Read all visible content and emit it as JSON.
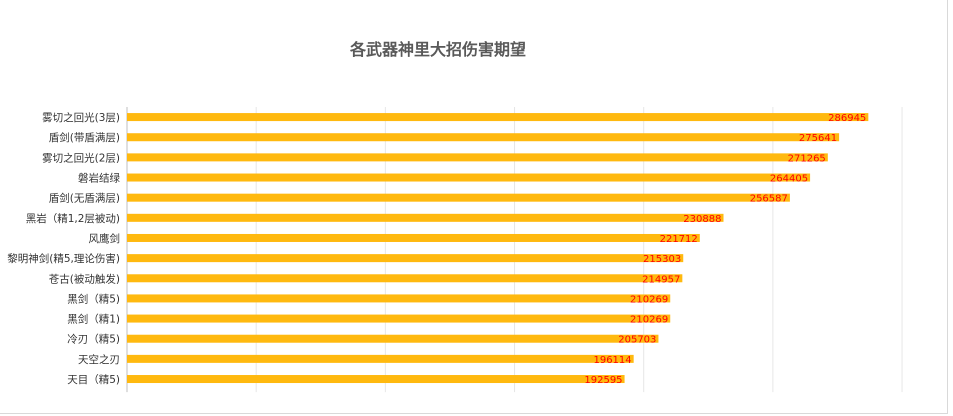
{
  "chart_data": {
    "type": "bar",
    "orientation": "horizontal",
    "title": "各武器神里大招伤害期望",
    "xlabel": "",
    "ylabel": "",
    "xlim": [
      0,
      300000
    ],
    "grid": true,
    "legend": "none",
    "colors": {
      "bar": "#FFB90F",
      "label": "#FF0000",
      "grid": "#E6E6E6"
    },
    "categories": [
      "雾切之回光(3层)",
      "盾剑(带盾满层)",
      "雾切之回光(2层)",
      "磐岩结绿",
      "盾剑(无盾满层)",
      "黑岩（精1,2层被动)",
      "风鹰剑",
      "黎明神剑(精5,理论伤害)",
      "苍古(被动触发)",
      "黑剑（精5)",
      "黑剑（精1)",
      "冷刃（精5)",
      "天空之刃",
      "天目（精5)"
    ],
    "values": [
      286945,
      275641,
      271265,
      264405,
      256587,
      230888,
      221712,
      215303,
      214957,
      210269,
      210269,
      205703,
      196114,
      192595
    ]
  }
}
